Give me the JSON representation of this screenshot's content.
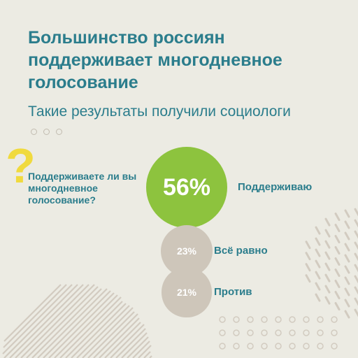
{
  "header": {
    "title": "Большинство россиян поддерживает многодневное голосование",
    "subtitle": "Такие результаты получили социологи"
  },
  "question": {
    "mark": "?",
    "text": "Поддерживаете ли вы многодневное голосование?"
  },
  "colors": {
    "background": "#ecebe3",
    "accent_teal": "#2b7d8c",
    "green": "#8dc33e",
    "taupe": "#cec6ba",
    "yellow": "#f0da3e",
    "decor": "#d2cbc0"
  },
  "chart_data": {
    "type": "bubble",
    "categories": [
      "Поддерживаю",
      "Всё равно",
      "Против"
    ],
    "values": [
      56,
      23,
      21
    ],
    "value_labels": [
      "56%",
      "23%",
      "21%"
    ],
    "unit": "%"
  }
}
